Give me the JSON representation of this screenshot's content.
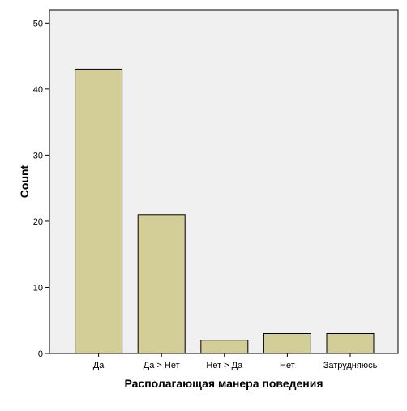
{
  "chart_data": {
    "type": "bar",
    "title": "",
    "xlabel": "Располагающая манера поведения",
    "ylabel": "Count",
    "categories": [
      "Да",
      "Да > Нет",
      "Нет > Да",
      "Нет",
      "Затрудняюсь"
    ],
    "values": [
      43,
      21,
      2,
      3,
      3
    ],
    "ylim": [
      0,
      52
    ],
    "yticks": [
      0,
      10,
      20,
      30,
      40,
      50
    ],
    "grid": false,
    "legend": "none",
    "colors": {
      "bar_fill": "#d3ce98",
      "bar_stroke": "#000000",
      "plot_background": "#f0f0f0",
      "page_background": "#ffffff"
    }
  }
}
